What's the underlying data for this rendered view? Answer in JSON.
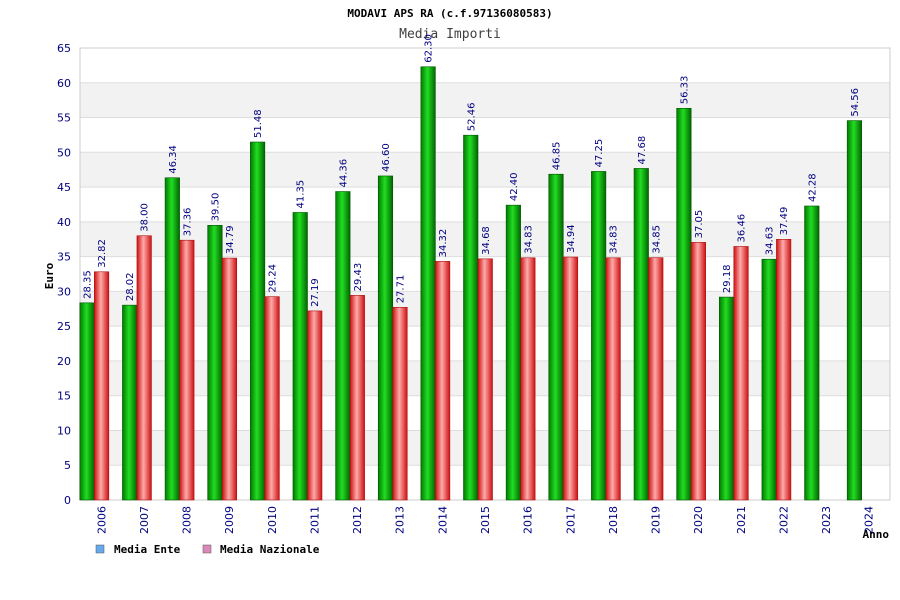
{
  "chart_data": {
    "type": "bar",
    "title": "MODAVI APS RA (c.f.97136080583)",
    "subtitle": "Media Importi",
    "xlabel": "Anno",
    "ylabel": "Euro",
    "ylim": [
      0,
      65
    ],
    "yticks": [
      0,
      5,
      10,
      15,
      20,
      25,
      30,
      35,
      40,
      45,
      50,
      55,
      60,
      65
    ],
    "grid": true,
    "legend_position": "bottom-left",
    "categories": [
      "2006",
      "2007",
      "2008",
      "2009",
      "2010",
      "2011",
      "2012",
      "2013",
      "2014",
      "2015",
      "2016",
      "2017",
      "2018",
      "2019",
      "2020",
      "2021",
      "2022",
      "2023",
      "2024"
    ],
    "series": [
      {
        "name": "Media Ente",
        "color": "#00aa00",
        "legend_color": "#66aaee",
        "values": [
          28.35,
          28.02,
          46.34,
          39.5,
          51.48,
          41.35,
          44.36,
          46.6,
          62.3,
          52.46,
          42.4,
          46.85,
          47.25,
          47.68,
          56.33,
          29.18,
          34.63,
          42.28,
          54.56
        ],
        "labels": [
          "28.35",
          "28.02",
          "46.34",
          "39.50",
          "51.48",
          "41.35",
          "44.36",
          "46.60",
          "62.30",
          "52.46",
          "42.40",
          "46.85",
          "47.25",
          "47.68",
          "56.33",
          "29.18",
          "34.63",
          "42.28",
          "54.56"
        ]
      },
      {
        "name": "Media Nazionale",
        "color": "#dd2222",
        "legend_color": "#dd88bb",
        "values": [
          32.82,
          38.0,
          37.36,
          34.79,
          29.24,
          27.19,
          29.43,
          27.71,
          34.32,
          34.68,
          34.83,
          34.94,
          34.83,
          34.85,
          37.05,
          36.46,
          37.49,
          null,
          null
        ],
        "labels": [
          "32.82",
          "38.00",
          "37.36",
          "34.79",
          "29.24",
          "27.19",
          "29.43",
          "27.71",
          "34.32",
          "34.68",
          "34.83",
          "34.94",
          "34.83",
          "34.85",
          "37.05",
          "36.46",
          "37.49",
          "",
          ""
        ]
      }
    ]
  }
}
